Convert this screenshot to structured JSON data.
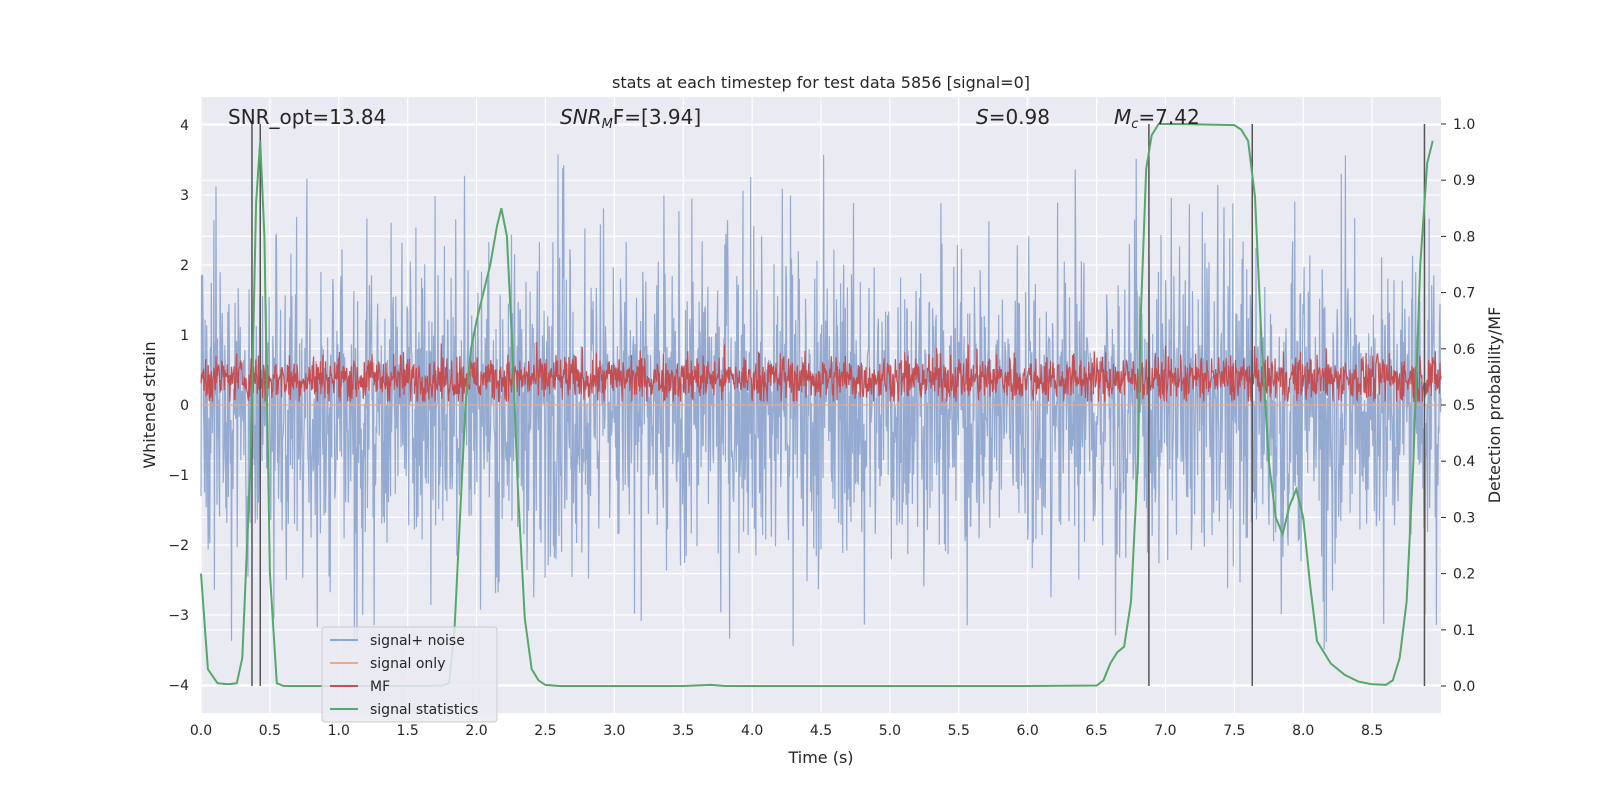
{
  "chart_data": {
    "type": "line",
    "title": "stats at each timestep for test data 5856 [signal=0]",
    "xlabel": "Time (s)",
    "ylabel": "Whitened strain",
    "y2label": "Detection probability/MF",
    "xlim": [
      0.0,
      9.0
    ],
    "ylim": [
      -4.4,
      4.4
    ],
    "y2lim": [
      -0.048,
      1.048
    ],
    "xticks": [
      "0.0",
      "0.5",
      "1.0",
      "1.5",
      "2.0",
      "2.5",
      "3.0",
      "3.5",
      "4.0",
      "4.5",
      "5.0",
      "5.5",
      "6.0",
      "6.5",
      "7.0",
      "7.5",
      "8.0",
      "8.5"
    ],
    "xtick_values": [
      0.0,
      0.5,
      1.0,
      1.5,
      2.0,
      2.5,
      3.0,
      3.5,
      4.0,
      4.5,
      5.0,
      5.5,
      6.0,
      6.5,
      7.0,
      7.5,
      8.0,
      8.5
    ],
    "yticks": [
      "−4",
      "−3",
      "−2",
      "−1",
      "0",
      "1",
      "2",
      "3",
      "4"
    ],
    "ytick_values": [
      -4,
      -3,
      -2,
      -1,
      0,
      1,
      2,
      3,
      4
    ],
    "y2ticks": [
      "0.0",
      "0.1",
      "0.2",
      "0.3",
      "0.4",
      "0.5",
      "0.6",
      "0.7",
      "0.8",
      "0.9",
      "1.0"
    ],
    "y2tick_values": [
      0.0,
      0.1,
      0.2,
      0.3,
      0.4,
      0.5,
      0.6,
      0.7,
      0.8,
      0.9,
      1.0
    ],
    "grid": true,
    "legend_position": "lower-left",
    "annotations": {
      "snr_opt": "SNR_opt=13.84",
      "snr_mf_main": "SNR",
      "snr_mf_sub": "M",
      "snr_mf_rest": "F=[3.94]",
      "s_var": "S",
      "s_rest": "=0.98",
      "mc_var": "M",
      "mc_sub": "c",
      "mc_rest": "=7.42"
    },
    "series": [
      {
        "name": "signal+ noise",
        "color": "#8fa6cf",
        "kind": "noise",
        "amplitude_range": [
          -3.6,
          4.0
        ]
      },
      {
        "name": "signal only",
        "color": "#e9a98c",
        "kind": "flat"
      },
      {
        "name": "MF",
        "color": "#c44e52",
        "kind": "band",
        "range": [
          0.05,
          1.0
        ]
      },
      {
        "name": "signal statistics",
        "color": "#55a868",
        "axis": "right",
        "x": [
          0.0,
          0.05,
          0.12,
          0.2,
          0.26,
          0.3,
          0.36,
          0.4,
          0.43,
          0.46,
          0.5,
          0.55,
          0.6,
          0.8,
          1.2,
          1.6,
          1.75,
          1.8,
          1.84,
          1.88,
          1.92,
          1.96,
          2.0,
          2.05,
          2.1,
          2.15,
          2.18,
          2.22,
          2.26,
          2.3,
          2.35,
          2.4,
          2.45,
          2.5,
          2.6,
          3.0,
          3.5,
          3.7,
          3.8,
          4.0,
          5.0,
          6.0,
          6.5,
          6.55,
          6.6,
          6.65,
          6.7,
          6.75,
          6.8,
          6.82,
          6.86,
          6.9,
          6.95,
          7.0,
          7.1,
          7.5,
          7.55,
          7.6,
          7.65,
          7.7,
          7.75,
          7.8,
          7.85,
          7.9,
          7.95,
          8.0,
          8.05,
          8.1,
          8.2,
          8.3,
          8.4,
          8.5,
          8.6,
          8.65,
          8.7,
          8.75,
          8.8,
          8.85,
          8.9,
          8.94
        ],
        "y": [
          0.2,
          0.03,
          0.005,
          0.003,
          0.005,
          0.05,
          0.4,
          0.86,
          0.97,
          0.8,
          0.2,
          0.005,
          0.0,
          0.0,
          0.0,
          0.0,
          0.001,
          0.005,
          0.1,
          0.3,
          0.5,
          0.6,
          0.65,
          0.7,
          0.75,
          0.82,
          0.85,
          0.8,
          0.6,
          0.35,
          0.12,
          0.03,
          0.01,
          0.002,
          0.0,
          0.0,
          0.0,
          0.002,
          0.0,
          0.0,
          0.0,
          0.0,
          0.001,
          0.01,
          0.04,
          0.06,
          0.07,
          0.15,
          0.4,
          0.65,
          0.92,
          0.98,
          1.0,
          1.0,
          1.0,
          0.998,
          0.99,
          0.97,
          0.87,
          0.6,
          0.4,
          0.3,
          0.27,
          0.32,
          0.35,
          0.3,
          0.18,
          0.08,
          0.04,
          0.02,
          0.008,
          0.003,
          0.002,
          0.01,
          0.05,
          0.15,
          0.4,
          0.75,
          0.93,
          0.97
        ]
      },
      {
        "name": "",
        "color": "#555555",
        "kind": "vlines",
        "x": [
          0.37,
          0.43,
          6.88,
          7.63,
          8.88
        ]
      }
    ]
  }
}
